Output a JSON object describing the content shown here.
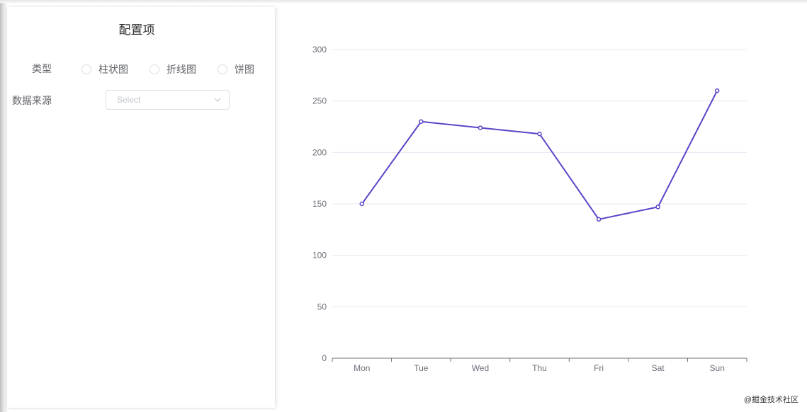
{
  "config_panel": {
    "title": "配置项",
    "type_label": "类型",
    "type_options": [
      "柱状图",
      "折线图",
      "饼图"
    ],
    "source_label": "数据来源",
    "source_select": {
      "placeholder": "Select",
      "icon": "chevron-down-icon"
    }
  },
  "watermark": "@掘金技术社区",
  "colors": {
    "line": "#5b45c9",
    "grid": "#e6e8f0",
    "axis": "#6e7079"
  },
  "chart_data": {
    "type": "line",
    "categories": [
      "Mon",
      "Tue",
      "Wed",
      "Thu",
      "Fri",
      "Sat",
      "Sun"
    ],
    "series": [
      {
        "values": [
          150,
          230,
          224,
          218,
          135,
          147,
          260
        ]
      }
    ],
    "yticks": [
      "0",
      "50",
      "100",
      "150",
      "200",
      "250",
      "300"
    ],
    "ylim": [
      0,
      300
    ],
    "grid": true
  }
}
